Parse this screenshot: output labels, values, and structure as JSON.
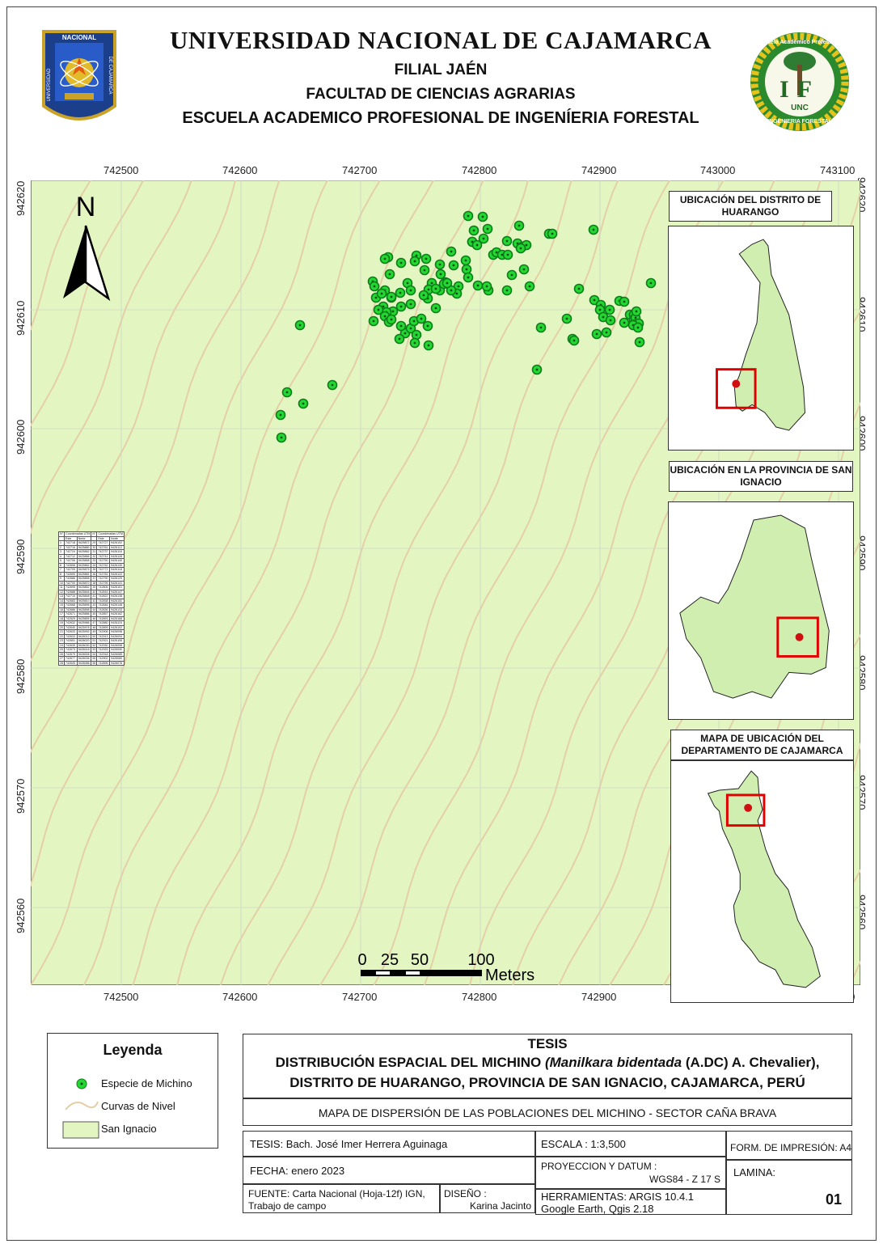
{
  "header": {
    "university": "UNIVERSIDAD NACIONAL DE CAJAMARCA",
    "branch": "FILIAL JAÉN",
    "faculty": "FACULTAD DE CIENCIAS AGRARIAS",
    "school": "ESCUELA ACADEMICO PROFESIONAL DE INGENÍERIA FORESTAL",
    "left_logo": {
      "icon": "university-seal-icon",
      "top_text": "NACIONAL",
      "left_text": "UNIVERSIDAD",
      "right_text": "DE CAJAMARCA"
    },
    "right_logo": {
      "icon": "forestry-school-seal-icon",
      "arc_text": "Escuela Académico Profesional",
      "letters": "IF",
      "mid_text": "UNC",
      "bottom_text": "INGENIERIA FORESTAL"
    }
  },
  "map": {
    "north_label": "N",
    "x_ticks": [
      "742500",
      "742600",
      "742700",
      "742800",
      "742900",
      "743000",
      "743100"
    ],
    "y_ticks": [
      "942620",
      "942610",
      "942600",
      "942590",
      "942580",
      "942570",
      "942560"
    ],
    "scale_bar": {
      "labels": [
        "0",
        "25",
        "50",
        "100"
      ],
      "unit": "Meters"
    },
    "colors": {
      "land": "#e3f6c2",
      "contour": "#e4cfa6",
      "point_fill": "#24d832",
      "point_stroke": "#0e7c1a",
      "inset_fill": "#cfeeb0",
      "highlight": "#e00000",
      "marker": "#d01010",
      "grid": "#cfd4c7"
    },
    "point_count": 120
  },
  "insets": [
    {
      "title": "UBICACIÓN DEL  DISTRITO DE HUARANGO"
    },
    {
      "title": "UBICACIÓN EN LA PROVINCIA DE SAN IGNACIO"
    },
    {
      "title": "MAPA DE UBICACIÓN DEL DEPARTAMENTO DE CAJAMARCA"
    }
  ],
  "coord_table": {
    "header_no": "N°",
    "header_group": "Coordenadas UTM",
    "header_este": "Este",
    "header_norte": "Norte",
    "rows": [
      [
        "1",
        "742718",
        "9425872",
        "29",
        "742727",
        "9426102"
      ],
      [
        "2",
        "742716",
        "9425880",
        "30",
        "742761",
        "9426112"
      ],
      [
        "3",
        "742724",
        "9425862",
        "31",
        "742737",
        "9426116"
      ],
      [
        "4",
        "742712",
        "9425866",
        "32",
        "742741",
        "9426128"
      ],
      [
        "5",
        "742706",
        "9425858",
        "33",
        "742750",
        "9426140"
      ],
      [
        "6",
        "742698",
        "9425862",
        "34",
        "742762",
        "9426130"
      ],
      [
        "7",
        "742709",
        "9425875",
        "35",
        "742772",
        "9426118"
      ],
      [
        "8",
        "742690",
        "9425881",
        "36",
        "742781",
        "9426122"
      ],
      [
        "9",
        "742686",
        "9425858",
        "37",
        "742790",
        "9426129"
      ],
      [
        "10",
        "742700",
        "9425870",
        "38",
        "742795",
        "9426141"
      ],
      [
        "11",
        "742695",
        "9425852",
        "39",
        "742806",
        "9426151"
      ],
      [
        "12",
        "742688",
        "9425845",
        "40",
        "742816",
        "9426147"
      ],
      [
        "13",
        "742710",
        "9425848",
        "41",
        "742822",
        "9426138"
      ],
      [
        "14",
        "742683",
        "9425810",
        "42",
        "742838",
        "9426152"
      ],
      [
        "15",
        "742668",
        "9425896",
        "43",
        "742846",
        "9426148"
      ],
      [
        "16",
        "742686",
        "9425898",
        "44",
        "742836",
        "9426133"
      ],
      [
        "17",
        "742671",
        "9425886",
        "45",
        "742857",
        "9426162"
      ],
      [
        "18",
        "742529",
        "9425855",
        "46",
        "742893",
        "9426168"
      ],
      [
        "19",
        "742632",
        "9425986",
        "47",
        "742880",
        "9426115"
      ],
      [
        "20",
        "742640",
        "9425978",
        "48",
        "742899",
        "9426102"
      ],
      [
        "21",
        "742633",
        "9425992",
        "49",
        "742906",
        "9426098"
      ],
      [
        "22",
        "742633",
        "9426012",
        "50",
        "742913",
        "9426094"
      ],
      [
        "23",
        "742651",
        "9426020",
        "51",
        "742921",
        "9426106"
      ],
      [
        "24",
        "742639",
        "9426030",
        "52",
        "742930",
        "9426098"
      ],
      [
        "25",
        "742673",
        "9426018",
        "53",
        "742925",
        "9426090"
      ],
      [
        "26",
        "742679",
        "9426006",
        "54",
        "742918",
        "9426085"
      ],
      [
        "27",
        "742677",
        "9426036",
        "55",
        "742902",
        "9426080"
      ],
      [
        "28",
        "742645",
        "9426086",
        "56",
        "742896",
        "9426076"
      ]
    ]
  },
  "legend": {
    "title": "Leyenda",
    "items": [
      "Especie de Michino",
      "Curvas de Nivel",
      "San Ignacio"
    ]
  },
  "title_block": {
    "heading": "TESIS",
    "line1_a": "DISTRIBUCIÓN ESPACIAL DEL MICHINO ",
    "line1_species": "(Manilkara bidentada",
    "line1_b": " (A.DC) A. Chevalier),",
    "line2": "DISTRITO  DE HUARANGO, PROVINCIA DE SAN IGNACIO, CAJAMARCA, PERÚ",
    "subtitle": "MAPA DE DISPERSIÓN DE LAS  POBLACIONES DEL MICHINO - SECTOR CAÑA BRAVA",
    "tesis": "TESIS: Bach. José Imer Herrera Aguinaga",
    "fecha": "FECHA: enero 2023",
    "fuente1": "FUENTE: Carta Nacional (Hoja-12f) IGN,",
    "fuente2": "Trabajo de campo",
    "diseno_label": "DISEÑO :",
    "diseno_value": "Karina Jacinto",
    "escala": "ESCALA :  1:3,500",
    "proyeccion_label": "PROYECCION Y DATUM :",
    "proyeccion_value": "WGS84 - Z 17 S",
    "herramientas1": "HERRAMIENTAS: ARGIS 10.4.1",
    "herramientas2": "Google Earth, Qgis 2.18",
    "form": "FORM. DE IMPRESIÓN: A4",
    "lamina_label": "LAMINA:",
    "lamina_value": "01"
  }
}
